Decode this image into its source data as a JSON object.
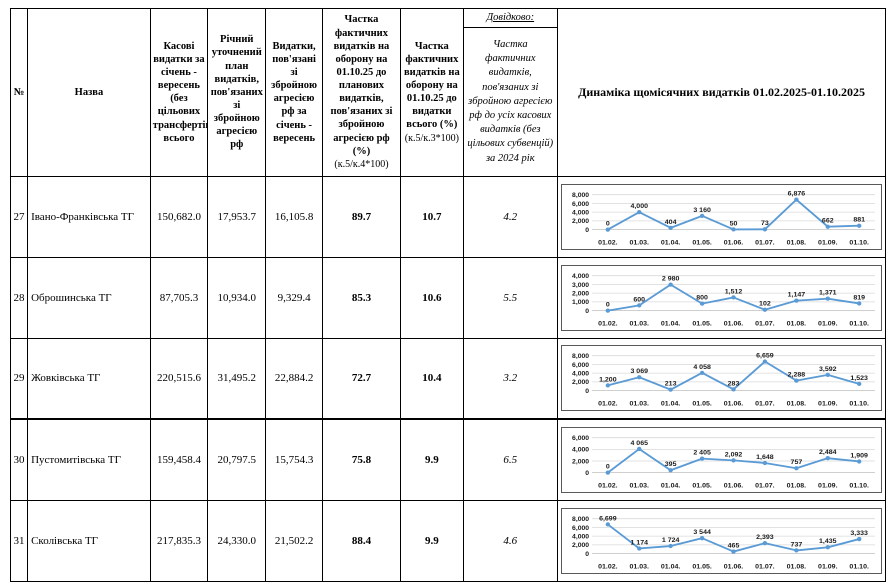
{
  "document": {
    "table": {
      "col_headers": {
        "num": "№",
        "name": "Назва",
        "cash": "Касові видатки за січень - вересень (без цільових трансфертів), всього",
        "plan": "Річний уточнений план видатків, пов'язаних зі збройною агресією рф",
        "war_exp": "Видатки, пов'язані зі збройною агресією рф за січень - вересень",
        "share_plan": "Частка фактичних видатків на оборону на 01.10.25 до планових видатків, пов'язаних зі збройною агресією рф (%)",
        "share_plan_formula": "(к.5/к.4*100)",
        "share_total": "Частка фактичних видатків на оборону на 01.10.25 до видатки всього (%)",
        "share_total_formula": "(к.5/к.3*100)",
        "reference_title": "Довідково:",
        "reference": "Частка фактичних видатків, пов'язаних зі збройною агресією рф до усіх касових видатків (без цільових субвенцій) за 2024 рік",
        "dynamics": "Динаміка щомісячних видатків 01.02.2025-01.10.2025"
      },
      "rows": [
        {
          "num": "27",
          "name": "Івано-Франківська ТГ",
          "cash": "150,682.0",
          "plan": "17,953.7",
          "war_exp": "16,105.8",
          "share_plan": "89.7",
          "share_total": "10.7",
          "reference": "4.2"
        },
        {
          "num": "28",
          "name": "Оброшинська ТГ",
          "cash": "87,705.3",
          "plan": "10,934.0",
          "war_exp": "9,329.4",
          "share_plan": "85.3",
          "share_total": "10.6",
          "reference": "5.5"
        },
        {
          "num": "29",
          "name": "Жовківська ТГ",
          "cash": "220,515.6",
          "plan": "31,495.2",
          "war_exp": "22,884.2",
          "share_plan": "72.7",
          "share_total": "10.4",
          "reference": "3.2"
        },
        {
          "num": "30",
          "name": "Пустомитівська ТГ",
          "cash": "159,458.4",
          "plan": "20,797.5",
          "war_exp": "15,754.3",
          "share_plan": "75.8",
          "share_total": "9.9",
          "reference": "6.5"
        },
        {
          "num": "31",
          "name": "Сколівська ТГ",
          "cash": "217,835.3",
          "plan": "24,330.0",
          "war_exp": "21,502.2",
          "share_plan": "88.4",
          "share_total": "9.9",
          "reference": "4.6"
        }
      ],
      "layout_hints": {
        "heavy_divider_above_row_num": "30"
      }
    }
  },
  "chart_common": {
    "type": "line",
    "categories": [
      "01.02.",
      "01.03.",
      "01.04.",
      "01.05.",
      "01.06.",
      "01.07.",
      "01.08.",
      "01.09.",
      "01.10."
    ],
    "line_color": "#5B9BD5",
    "grid_color": "#D9D9D9",
    "axis_color": "#BFBFBF",
    "grid": "on",
    "legend": "none"
  },
  "chart_data": [
    {
      "type": "line",
      "row": "27",
      "categories": [
        "01.02.",
        "01.03.",
        "01.04.",
        "01.05.",
        "01.06.",
        "01.07.",
        "01.08.",
        "01.09.",
        "01.10."
      ],
      "values": [
        0,
        4000,
        404,
        3160,
        50,
        73,
        6876,
        662,
        881
      ],
      "point_labels": [
        "0",
        "4,000",
        "404",
        "3 160",
        "50",
        "73",
        "6,876",
        "662",
        "881"
      ],
      "ylim": [
        0,
        8000
      ],
      "ystep": 2000,
      "yticks": [
        "0",
        "2,000",
        "4,000",
        "6,000",
        "8,000"
      ]
    },
    {
      "type": "line",
      "row": "28",
      "categories": [
        "01.02.",
        "01.03.",
        "01.04.",
        "01.05.",
        "01.06.",
        "01.07.",
        "01.08.",
        "01.09.",
        "01.10."
      ],
      "values": [
        0,
        600,
        2980,
        800,
        1512,
        102,
        1147,
        1371,
        819
      ],
      "point_labels": [
        "0",
        "600",
        "2 980",
        "800",
        "1,512",
        "102",
        "1,147",
        "1,371",
        "819"
      ],
      "ylim": [
        0,
        4000
      ],
      "ystep": 1000,
      "yticks": [
        "0",
        "1,000",
        "2,000",
        "3,000",
        "4,000"
      ]
    },
    {
      "type": "line",
      "row": "29",
      "categories": [
        "01.02.",
        "01.03.",
        "01.04.",
        "01.05.",
        "01.06.",
        "01.07.",
        "01.08.",
        "01.09.",
        "01.10."
      ],
      "values": [
        1200,
        3069,
        213,
        4058,
        283,
        6659,
        2288,
        3592,
        1523
      ],
      "point_labels": [
        "1,200",
        "3 069",
        "213",
        "4 058",
        "283",
        "6,659",
        "2,288",
        "3,592",
        "1,523"
      ],
      "ylim": [
        0,
        8000
      ],
      "ystep": 2000,
      "yticks": [
        "0",
        "2,000",
        "4,000",
        "6,000",
        "8,000"
      ]
    },
    {
      "type": "line",
      "row": "30",
      "categories": [
        "01.02.",
        "01.03.",
        "01.04.",
        "01.05.",
        "01.06.",
        "01.07.",
        "01.08.",
        "01.09.",
        "01.10."
      ],
      "values": [
        0,
        4065,
        395,
        2405,
        2092,
        1648,
        757,
        2484,
        1909
      ],
      "point_labels": [
        "0",
        "4 065",
        "395",
        "2 405",
        "2,092",
        "1,648",
        "757",
        "2,484",
        "1,909"
      ],
      "ylim": [
        0,
        6000
      ],
      "ystep": 2000,
      "yticks": [
        "0",
        "2,000",
        "4,000",
        "6,000"
      ]
    },
    {
      "type": "line",
      "row": "31",
      "categories": [
        "01.02.",
        "01.03.",
        "01.04.",
        "01.05.",
        "01.06.",
        "01.07.",
        "01.08.",
        "01.09.",
        "01.10."
      ],
      "values": [
        6699,
        1174,
        1724,
        3544,
        465,
        2393,
        737,
        1435,
        3333
      ],
      "point_labels": [
        "6,699",
        "1 174",
        "1 724",
        "3 544",
        "465",
        "2,393",
        "737",
        "1,435",
        "3,333"
      ],
      "ylim": [
        0,
        8000
      ],
      "ystep": 2000,
      "yticks": [
        "0",
        "2,000",
        "4,000",
        "6,000",
        "8,000"
      ]
    }
  ]
}
